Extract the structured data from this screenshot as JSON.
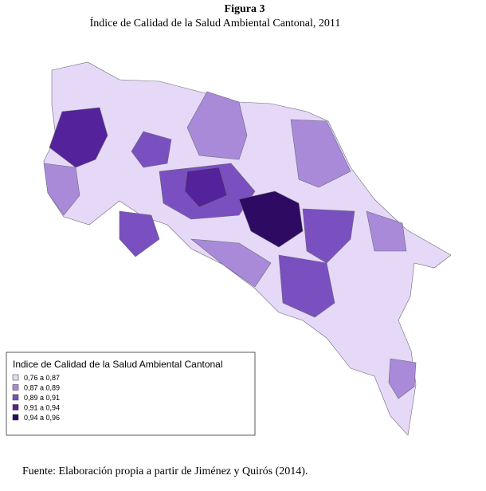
{
  "figure": {
    "label": "Figura 3",
    "title": "Índice de Calidad de la Salud Ambiental Cantonal, 2011"
  },
  "legend": {
    "title": "Indice de Calidad de la Salud Ambiental Cantonal",
    "items": [
      {
        "label": "0,76  a 0,87",
        "color": "#e6d9f7"
      },
      {
        "label": "0,87  a  0,89",
        "color": "#a98ad9"
      },
      {
        "label": "0,89  a  0,91",
        "color": "#7a4fc0"
      },
      {
        "label": "0,91  a  0,94",
        "color": "#54229a"
      },
      {
        "label": "0,94  a  0,96",
        "color": "#2e0a63"
      }
    ]
  },
  "source": "Fuente: Elaboración propia a partir de Jiménez y Quirós (2014)."
}
